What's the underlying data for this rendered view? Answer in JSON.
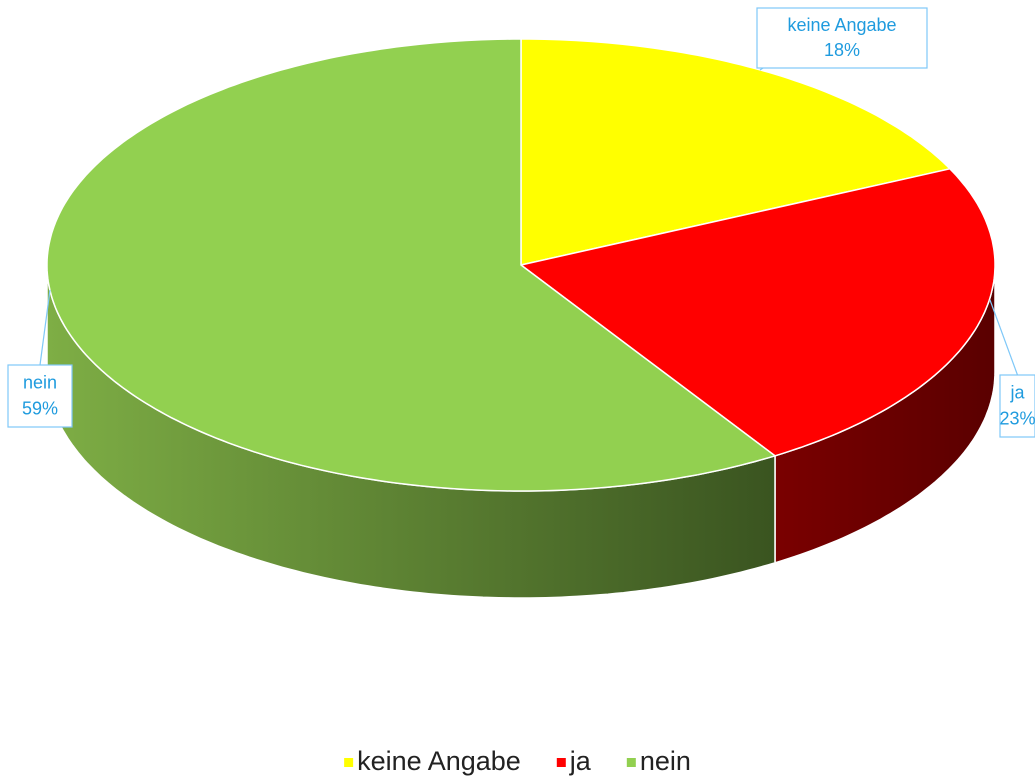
{
  "chart_data": {
    "type": "pie",
    "categories": [
      "keine Angabe",
      "ja",
      "nein"
    ],
    "values": [
      18,
      23,
      59
    ],
    "value_labels": [
      "18%",
      "23%",
      "59%"
    ],
    "colors": [
      "#ffff00",
      "#ff0000",
      "#92d050"
    ],
    "legend": "bottom"
  }
}
